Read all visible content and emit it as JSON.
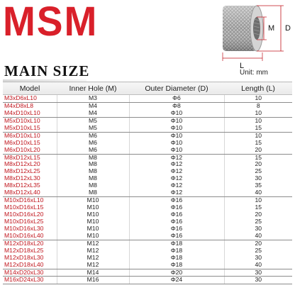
{
  "brand": {
    "logo_text": "MSM",
    "color": "#d9202a"
  },
  "heading": "MAIN SIZE",
  "unit": "Unit: mm",
  "diagram": {
    "label_m": "M",
    "label_d": "D",
    "label_l": "L"
  },
  "table": {
    "headers": [
      "Model",
      "Inner Hole (M)",
      "Outer Diameter (D)",
      "Length (L)"
    ],
    "rows": [
      [
        "M3xD6xL10",
        "M3",
        "Φ6",
        "10"
      ],
      [
        "M4xD8xL8",
        "M4",
        "Φ8",
        "8"
      ],
      [
        "M4xD10xL10",
        "M4",
        "Φ10",
        "10"
      ],
      [
        "M5xD10xL10",
        "M5",
        "Φ10",
        "10"
      ],
      [
        "M5xD10xL15",
        "M5",
        "Φ10",
        "15"
      ],
      [
        "M6xD10xL10",
        "M6",
        "Φ10",
        "10"
      ],
      [
        "M6xD10xL15",
        "M6",
        "Φ10",
        "15"
      ],
      [
        "M6xD10xL20",
        "M6",
        "Φ10",
        "20"
      ],
      [
        "M8xD12xL15",
        "M8",
        "Φ12",
        "15"
      ],
      [
        "M8xD12xL20",
        "M8",
        "Φ12",
        "20"
      ],
      [
        "M8xD12xL25",
        "M8",
        "Φ12",
        "25"
      ],
      [
        "M8xD12xL30",
        "M8",
        "Φ12",
        "30"
      ],
      [
        "M8xD12xL35",
        "M8",
        "Φ12",
        "35"
      ],
      [
        "M8xD12xL40",
        "M8",
        "Φ12",
        "40"
      ],
      [
        "M10xD16xL10",
        "M10",
        "Φ16",
        "10"
      ],
      [
        "M10xD16xL15",
        "M10",
        "Φ16",
        "15"
      ],
      [
        "M10xD16xL20",
        "M10",
        "Φ16",
        "20"
      ],
      [
        "M10xD16xL25",
        "M10",
        "Φ16",
        "25"
      ],
      [
        "M10xD16xL30",
        "M10",
        "Φ16",
        "30"
      ],
      [
        "M10xD16xL40",
        "M10",
        "Φ16",
        "40"
      ],
      [
        "M12xD18xL20",
        "M12",
        "Φ18",
        "20"
      ],
      [
        "M12xD18xL25",
        "M12",
        "Φ18",
        "25"
      ],
      [
        "M12xD18xL30",
        "M12",
        "Φ18",
        "30"
      ],
      [
        "M12xD18xL40",
        "M12",
        "Φ18",
        "40"
      ],
      [
        "M14xD20xL30",
        "M14",
        "Φ20",
        "30"
      ],
      [
        "M16xD24xL30",
        "M16",
        "Φ24",
        "30"
      ]
    ]
  }
}
